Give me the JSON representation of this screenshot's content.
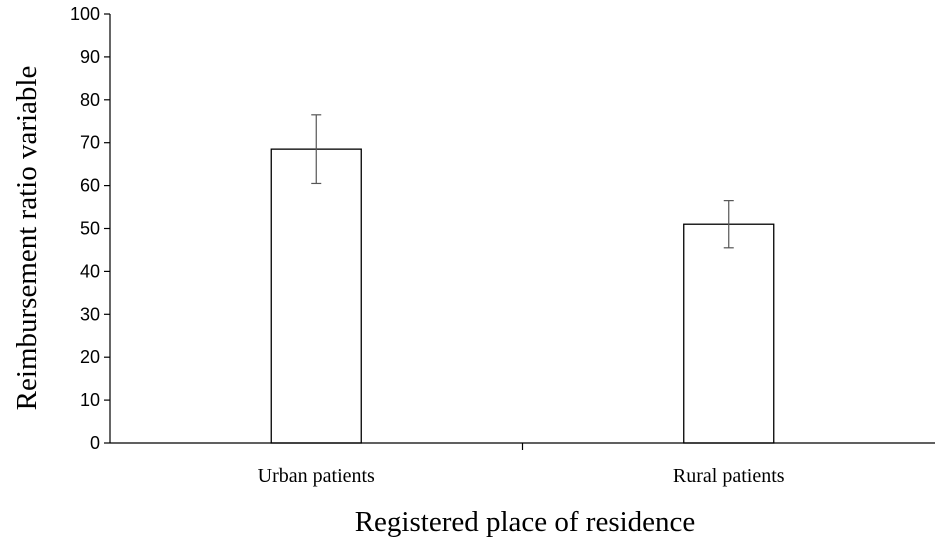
{
  "chart_data": {
    "type": "bar",
    "categories": [
      "Urban patients",
      "Rural patients"
    ],
    "values": [
      68.5,
      51.0
    ],
    "error": [
      8.0,
      5.5
    ],
    "title": "",
    "xlabel": "Registered place of residence",
    "ylabel": "Reimbursement ratio variable",
    "ylim": [
      0,
      100
    ],
    "yticks": [
      "0",
      "10",
      "20",
      "30",
      "40",
      "50",
      "60",
      "70",
      "80",
      "90",
      "100"
    ],
    "grid": false,
    "legend": "none",
    "colors": {
      "bar_fill": "#ffffff",
      "bar_stroke": "#000000",
      "error": "#555555"
    }
  }
}
